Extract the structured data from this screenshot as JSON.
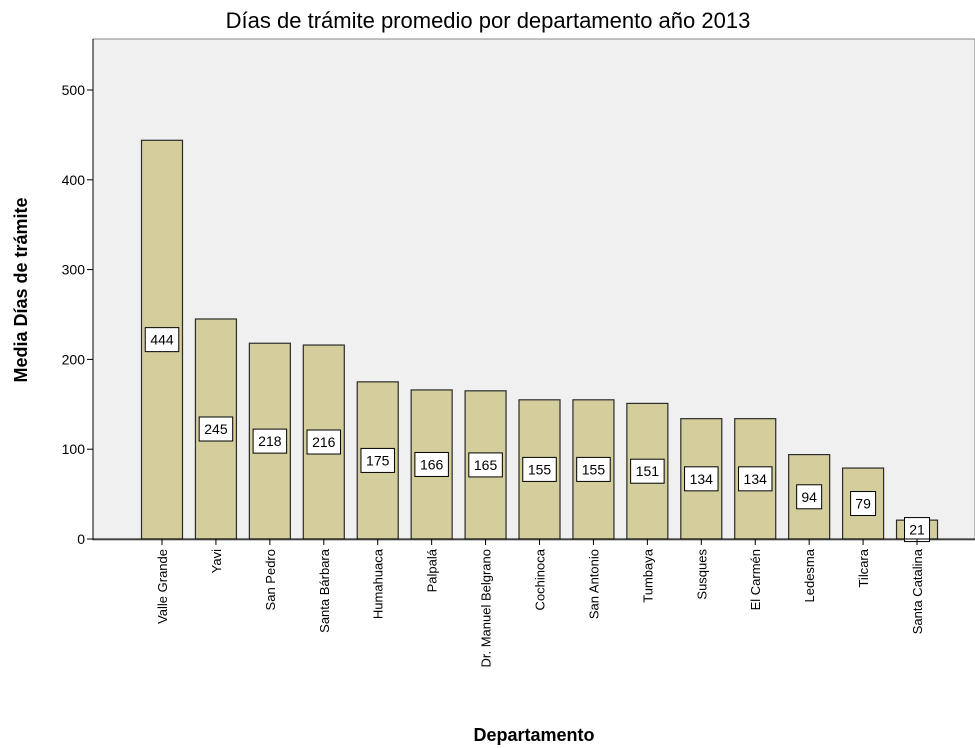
{
  "chart_data": {
    "type": "bar",
    "title": "Días de trámite promedio por departamento año 2013",
    "xlabel": "Departamento",
    "ylabel": "Media Días de trámite",
    "ylim": [
      0,
      560
    ],
    "yticks": [
      0,
      100,
      200,
      300,
      400,
      500
    ],
    "grid": false,
    "categories": [
      "Valle Grande",
      "Yavi",
      "San Pedro",
      "Santa Bárbara",
      "Humahuaca",
      "Palpalá",
      "Dr. Manuel Belgrano",
      "Cochinoca",
      "San Antonio",
      "Tumbaya",
      "Susques",
      "El Carmén",
      "Ledesma",
      "Tilcara",
      "Santa Catalina"
    ],
    "values": [
      444,
      245,
      218,
      216,
      175,
      166,
      165,
      155,
      155,
      151,
      134,
      134,
      94,
      79,
      21
    ],
    "colors": {
      "bar": "#d3ce9c",
      "bar_stroke": "#2b2b2b",
      "plot_bg": "#f0f0f0",
      "axis": "#000000"
    }
  }
}
